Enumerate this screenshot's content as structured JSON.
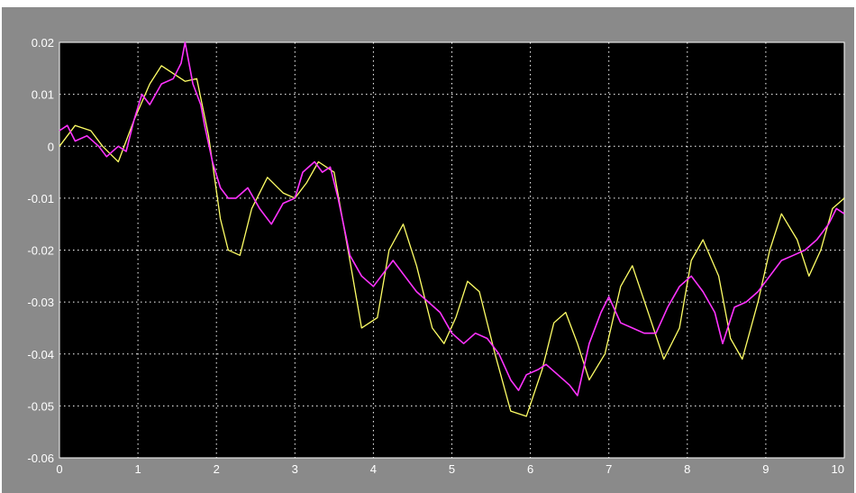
{
  "chart_data": {
    "type": "line",
    "title": "",
    "xlabel": "",
    "ylabel": "",
    "xlim": [
      0,
      10
    ],
    "ylim": [
      -0.06,
      0.02
    ],
    "x_ticks": [
      "0",
      "1",
      "2",
      "3",
      "4",
      "5",
      "6",
      "7",
      "8",
      "9",
      "10"
    ],
    "y_ticks": [
      "0.02",
      "0.01",
      "0",
      "-0.01",
      "-0.02",
      "-0.03",
      "-0.04",
      "-0.05",
      "-0.06"
    ],
    "grid": true,
    "background": "#000000",
    "frame_color": "#8a8a8a",
    "series": [
      {
        "color": "#ffff66",
        "x": [
          0,
          0.2,
          0.4,
          0.55,
          0.75,
          0.95,
          1.15,
          1.3,
          1.45,
          1.6,
          1.75,
          1.9,
          2.05,
          2.15,
          2.3,
          2.45,
          2.65,
          2.85,
          3.0,
          3.15,
          3.3,
          3.5,
          3.7,
          3.85,
          4.05,
          4.2,
          4.38,
          4.55,
          4.75,
          4.9,
          5.05,
          5.2,
          5.35,
          5.55,
          5.75,
          5.95,
          6.15,
          6.3,
          6.45,
          6.6,
          6.75,
          6.95,
          7.15,
          7.3,
          7.5,
          7.7,
          7.9,
          8.05,
          8.2,
          8.4,
          8.55,
          8.7,
          8.9,
          9.05,
          9.2,
          9.4,
          9.55,
          9.7,
          9.85,
          10.0
        ],
        "y": [
          0.0,
          0.004,
          0.003,
          0.0,
          -0.003,
          0.005,
          0.012,
          0.0155,
          0.014,
          0.0125,
          0.013,
          0.002,
          -0.014,
          -0.02,
          -0.021,
          -0.012,
          -0.006,
          -0.009,
          -0.01,
          -0.007,
          -0.003,
          -0.005,
          -0.022,
          -0.035,
          -0.033,
          -0.02,
          -0.015,
          -0.023,
          -0.035,
          -0.038,
          -0.033,
          -0.026,
          -0.028,
          -0.04,
          -0.051,
          -0.052,
          -0.043,
          -0.034,
          -0.032,
          -0.038,
          -0.045,
          -0.04,
          -0.027,
          -0.023,
          -0.032,
          -0.041,
          -0.035,
          -0.022,
          -0.018,
          -0.025,
          -0.037,
          -0.041,
          -0.03,
          -0.02,
          -0.013,
          -0.018,
          -0.025,
          -0.02,
          -0.012,
          -0.01
        ]
      },
      {
        "color": "#ff33ff",
        "x": [
          0,
          0.1,
          0.2,
          0.35,
          0.5,
          0.6,
          0.75,
          0.85,
          0.95,
          1.05,
          1.15,
          1.3,
          1.45,
          1.55,
          1.6,
          1.7,
          1.8,
          1.85,
          1.95,
          2.05,
          2.15,
          2.25,
          2.4,
          2.55,
          2.7,
          2.85,
          3.0,
          3.1,
          3.25,
          3.35,
          3.45,
          3.55,
          3.7,
          3.85,
          4.0,
          4.1,
          4.25,
          4.4,
          4.55,
          4.7,
          4.85,
          5.0,
          5.15,
          5.3,
          5.45,
          5.6,
          5.75,
          5.85,
          5.95,
          6.1,
          6.2,
          6.35,
          6.5,
          6.6,
          6.75,
          6.9,
          7.0,
          7.15,
          7.3,
          7.45,
          7.6,
          7.75,
          7.9,
          8.05,
          8.2,
          8.35,
          8.45,
          8.6,
          8.75,
          8.9,
          9.05,
          9.2,
          9.35,
          9.5,
          9.65,
          9.8,
          9.9,
          10.0
        ],
        "y": [
          0.003,
          0.004,
          0.001,
          0.002,
          0.0,
          -0.002,
          0.0,
          -0.001,
          0.005,
          0.01,
          0.008,
          0.012,
          0.013,
          0.016,
          0.02,
          0.012,
          0.008,
          0.004,
          -0.003,
          -0.008,
          -0.01,
          -0.01,
          -0.008,
          -0.012,
          -0.015,
          -0.011,
          -0.01,
          -0.005,
          -0.003,
          -0.005,
          -0.004,
          -0.01,
          -0.021,
          -0.025,
          -0.027,
          -0.025,
          -0.022,
          -0.025,
          -0.028,
          -0.03,
          -0.032,
          -0.036,
          -0.038,
          -0.036,
          -0.037,
          -0.04,
          -0.045,
          -0.047,
          -0.044,
          -0.043,
          -0.042,
          -0.044,
          -0.046,
          -0.048,
          -0.038,
          -0.032,
          -0.029,
          -0.034,
          -0.035,
          -0.036,
          -0.036,
          -0.031,
          -0.027,
          -0.025,
          -0.028,
          -0.032,
          -0.038,
          -0.031,
          -0.03,
          -0.028,
          -0.025,
          -0.022,
          -0.021,
          -0.02,
          -0.018,
          -0.015,
          -0.012,
          -0.013
        ]
      }
    ]
  }
}
